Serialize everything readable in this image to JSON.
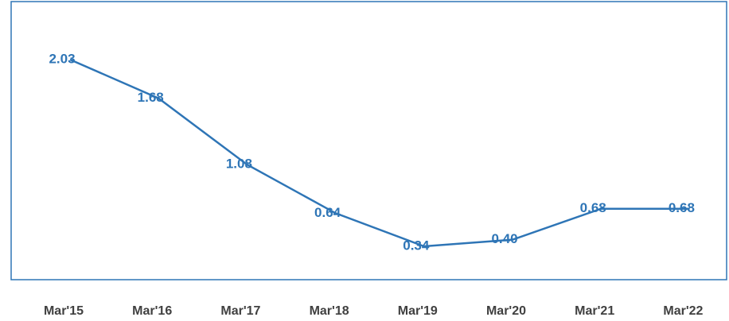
{
  "chart_data": {
    "type": "line",
    "categories": [
      "Mar'15",
      "Mar'16",
      "Mar'17",
      "Mar'18",
      "Mar'19",
      "Mar'20",
      "Mar'21",
      "Mar'22"
    ],
    "values": [
      2.03,
      1.68,
      1.08,
      0.64,
      0.34,
      0.4,
      0.68,
      0.68
    ],
    "value_labels": [
      "2.03",
      "1.68",
      "1.08",
      "0.64",
      "0.34",
      "0.40",
      "0.68",
      "0.68"
    ],
    "color": "#2e75b6"
  }
}
